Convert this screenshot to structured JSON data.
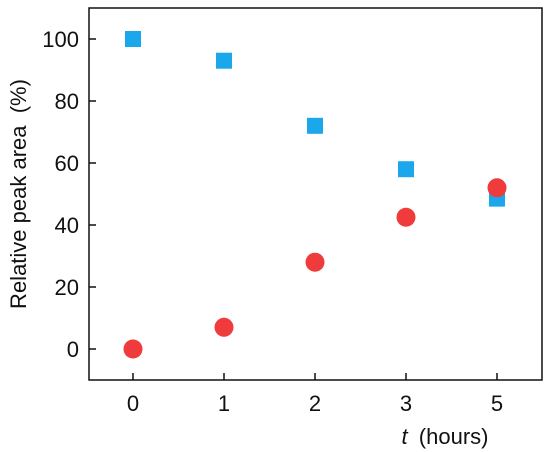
{
  "chart_data": {
    "type": "scatter",
    "title": "",
    "xlabel": {
      "variable": "t",
      "unit": "(hours)"
    },
    "ylabel": "Relative peak area  (%)",
    "x_categories": [
      "0",
      "1",
      "2",
      "3",
      "5"
    ],
    "ylim": [
      -10,
      110
    ],
    "yticks": [
      "0",
      "20",
      "40",
      "60",
      "80",
      "100"
    ],
    "grid": false,
    "legend": "none",
    "series": [
      {
        "marker": "square",
        "color": "#1AA7EC",
        "values": [
          100,
          93,
          72,
          58,
          48.5
        ]
      },
      {
        "marker": "circle",
        "color": "#EF3B3B",
        "values": [
          0,
          7,
          28,
          42.5,
          52
        ]
      }
    ]
  }
}
